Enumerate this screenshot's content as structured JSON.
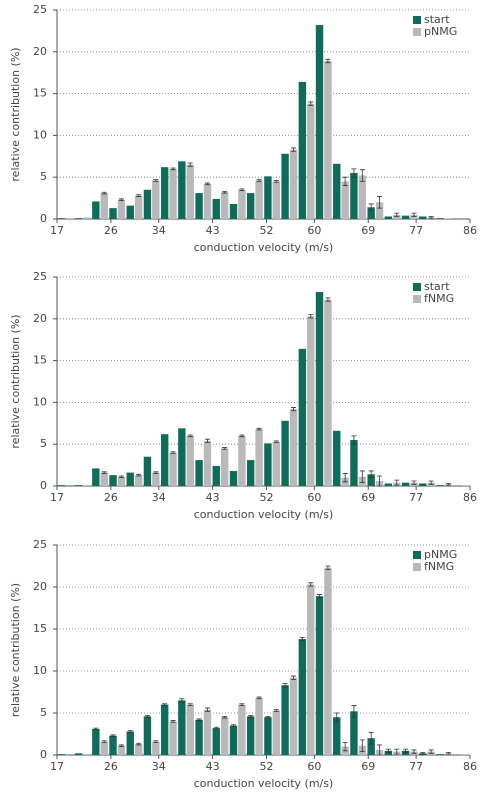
{
  "chart_data": [
    {
      "type": "bar",
      "ylabel": "relative contribution (%)",
      "xlabel": "conduction velocity (m/s)",
      "x": [
        18.44,
        21.31,
        24.19,
        27.06,
        29.94,
        32.81,
        35.69,
        38.56,
        41.44,
        44.31,
        47.19,
        50.06,
        52.94,
        55.81,
        58.69,
        61.56,
        64.44,
        67.31,
        70.19,
        73.06,
        75.94,
        78.81,
        81.69,
        84.56
      ],
      "xlim": [
        17,
        86
      ],
      "xticks": [
        17,
        26,
        34,
        43,
        52,
        60,
        69,
        77,
        86
      ],
      "ylim": [
        0,
        25
      ],
      "yticks": [
        0,
        5,
        10,
        15,
        20,
        25
      ],
      "grid": true,
      "legend": "upper right",
      "series": [
        {
          "name": "start",
          "color": "#0f6b5a",
          "values": [
            0.1,
            0.1,
            2.1,
            1.3,
            1.6,
            3.5,
            6.2,
            6.9,
            3.1,
            2.4,
            1.8,
            3.1,
            5.1,
            7.8,
            16.4,
            23.2,
            6.6,
            5.5,
            1.4,
            0.3,
            0.4,
            0.3,
            0.1,
            0
          ],
          "errors": [
            0,
            0,
            0,
            0,
            0,
            0,
            0,
            0,
            0,
            0,
            0,
            0,
            0,
            0,
            0,
            0,
            0,
            0.5,
            0.4,
            0,
            0,
            0,
            0,
            0
          ]
        },
        {
          "name": "pNMG",
          "color": "#b9b9b9",
          "values": [
            0.1,
            0.2,
            3.1,
            2.3,
            2.8,
            4.6,
            6.0,
            6.5,
            4.2,
            3.2,
            3.5,
            4.6,
            4.5,
            8.3,
            13.8,
            18.9,
            4.5,
            5.2,
            2.0,
            0.5,
            0.5,
            0.2,
            0.1,
            0
          ],
          "errors": [
            0,
            0,
            0.1,
            0.1,
            0.1,
            0.1,
            0.1,
            0.2,
            0.1,
            0.1,
            0.1,
            0.1,
            0.1,
            0.2,
            0.2,
            0.2,
            0.5,
            0.7,
            0.7,
            0.2,
            0.2,
            0.1,
            0,
            0
          ]
        }
      ]
    },
    {
      "type": "bar",
      "ylabel": "relative contribution (%)",
      "xlabel": "conduction velocity (m/s)",
      "x": [
        18.44,
        21.31,
        24.19,
        27.06,
        29.94,
        32.81,
        35.69,
        38.56,
        41.44,
        44.31,
        47.19,
        50.06,
        52.94,
        55.81,
        58.69,
        61.56,
        64.44,
        67.31,
        70.19,
        73.06,
        75.94,
        78.81,
        81.69,
        84.56
      ],
      "xlim": [
        17,
        86
      ],
      "xticks": [
        17,
        26,
        34,
        43,
        52,
        60,
        69,
        77,
        86
      ],
      "ylim": [
        0,
        25
      ],
      "yticks": [
        0,
        5,
        10,
        15,
        20,
        25
      ],
      "grid": true,
      "legend": "upper right",
      "series": [
        {
          "name": "start",
          "color": "#0f6b5a",
          "values": [
            0.1,
            0.1,
            2.1,
            1.3,
            1.6,
            3.5,
            6.2,
            6.9,
            3.1,
            2.4,
            1.8,
            3.1,
            5.1,
            7.8,
            16.4,
            23.2,
            6.6,
            5.5,
            1.4,
            0.3,
            0.4,
            0.3,
            0.1,
            0
          ],
          "errors": [
            0,
            0,
            0,
            0,
            0,
            0,
            0,
            0,
            0,
            0,
            0,
            0,
            0,
            0,
            0,
            0,
            0,
            0.5,
            0.4,
            0,
            0,
            0,
            0,
            0
          ]
        },
        {
          "name": "fNMG",
          "color": "#b9b9b9",
          "values": [
            0,
            0.1,
            1.6,
            1.1,
            1.3,
            1.6,
            4.0,
            6.0,
            5.4,
            4.5,
            6.0,
            6.8,
            5.3,
            9.2,
            20.3,
            22.3,
            1.0,
            1.1,
            0.6,
            0.4,
            0.4,
            0.4,
            0.2,
            0.1
          ],
          "errors": [
            0,
            0,
            0.1,
            0.1,
            0.1,
            0.1,
            0.1,
            0.1,
            0.2,
            0.1,
            0.1,
            0.1,
            0.1,
            0.2,
            0.2,
            0.2,
            0.5,
            0.7,
            0.6,
            0.3,
            0.2,
            0.2,
            0.1,
            0
          ]
        }
      ]
    },
    {
      "type": "bar",
      "ylabel": "relative contribution (%)",
      "xlabel": "conduction velocity (m/s)",
      "x": [
        18.44,
        21.31,
        24.19,
        27.06,
        29.94,
        32.81,
        35.69,
        38.56,
        41.44,
        44.31,
        47.19,
        50.06,
        52.94,
        55.81,
        58.69,
        61.56,
        64.44,
        67.31,
        70.19,
        73.06,
        75.94,
        78.81,
        81.69,
        84.56
      ],
      "xlim": [
        17,
        86
      ],
      "xticks": [
        17,
        26,
        34,
        43,
        52,
        60,
        69,
        77,
        86
      ],
      "ylim": [
        0,
        25
      ],
      "yticks": [
        0,
        5,
        10,
        15,
        20,
        25
      ],
      "grid": true,
      "legend": "upper right",
      "series": [
        {
          "name": "pNMG",
          "color": "#0f6b5a",
          "values": [
            0.1,
            0.2,
            3.1,
            2.3,
            2.8,
            4.6,
            6.0,
            6.5,
            4.2,
            3.2,
            3.5,
            4.6,
            4.5,
            8.3,
            13.8,
            18.9,
            4.5,
            5.2,
            2.0,
            0.5,
            0.5,
            0.2,
            0.1,
            0
          ],
          "errors": [
            0,
            0,
            0.1,
            0.1,
            0.1,
            0.1,
            0.1,
            0.2,
            0.1,
            0.1,
            0.1,
            0.1,
            0.1,
            0.2,
            0.2,
            0.2,
            0.5,
            0.7,
            0.7,
            0.2,
            0.2,
            0.1,
            0,
            0
          ]
        },
        {
          "name": "fNMG",
          "color": "#b9b9b9",
          "values": [
            0,
            0.1,
            1.6,
            1.1,
            1.3,
            1.6,
            4.0,
            6.0,
            5.4,
            4.5,
            6.0,
            6.8,
            5.3,
            9.2,
            20.3,
            22.3,
            1.0,
            1.1,
            0.6,
            0.4,
            0.4,
            0.4,
            0.2,
            0.1
          ],
          "errors": [
            0,
            0,
            0.1,
            0.1,
            0.1,
            0.1,
            0.1,
            0.1,
            0.2,
            0.1,
            0.1,
            0.1,
            0.1,
            0.2,
            0.2,
            0.2,
            0.5,
            0.7,
            0.6,
            0.3,
            0.2,
            0.2,
            0.1,
            0
          ]
        }
      ]
    }
  ]
}
